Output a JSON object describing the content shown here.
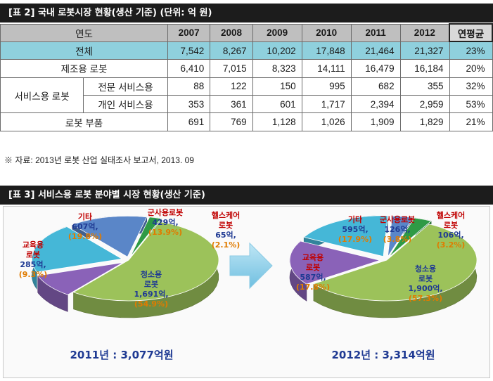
{
  "table2": {
    "title": "[표 2] 국내 로봇시장 현황(생산 기준) (단위: 억 원)",
    "header": {
      "label": "연도",
      "years": [
        "2007",
        "2008",
        "2009",
        "2010",
        "2011",
        "2012"
      ],
      "cagr": "연평균"
    },
    "rows": [
      {
        "label": "전체",
        "values": [
          "7,542",
          "8,267",
          "10,202",
          "17,848",
          "21,464",
          "21,327"
        ],
        "cagr": "23%"
      },
      {
        "label": "제조용 로봇",
        "values": [
          "6,410",
          "7,015",
          "8,323",
          "14,111",
          "16,479",
          "16,184"
        ],
        "cagr": "20%"
      },
      {
        "group": "서비스용 로봇",
        "label": "전문 서비스용",
        "values": [
          "88",
          "122",
          "150",
          "995",
          "682",
          "355"
        ],
        "cagr": "32%"
      },
      {
        "label": "개인 서비스용",
        "values": [
          "353",
          "361",
          "601",
          "1,717",
          "2,394",
          "2,959"
        ],
        "cagr": "53%"
      },
      {
        "label": "로봇 부품",
        "values": [
          "691",
          "769",
          "1,128",
          "1,026",
          "1,909",
          "1,829"
        ],
        "cagr": "21%"
      }
    ],
    "note": "※ 자료: 2013년 로봇 산업 실태조사 보고서, 2013. 09"
  },
  "table3": {
    "title": "[표 3] 서비스용 로봇 분야별 시장 현황(생산 기준)"
  },
  "chart_data": [
    {
      "type": "pie",
      "title": "2011년 : 3,077억원",
      "slices": [
        {
          "name": "청소용 로봇",
          "value": 1691,
          "value_label": "1,691억,",
          "percent": "(54.9%)",
          "color": "#9cc25a"
        },
        {
          "name": "교육용 로봇",
          "value": 285,
          "value_label": "285억,",
          "percent": "(9.3%)",
          "color": "#8a62b8"
        },
        {
          "name": "기타",
          "value": 607,
          "value_label": "607억,",
          "percent": "(19.8%)",
          "color": "#45b7d7"
        },
        {
          "name": "군사용로봇",
          "value": 429,
          "value_label": "429억,",
          "percent": "(13.9%)",
          "color": "#5a86c8"
        },
        {
          "name": "헬스케어 로봇",
          "value": 65,
          "value_label": "65억,",
          "percent": "(2.1%)",
          "color": "#2f9a45"
        }
      ]
    },
    {
      "type": "pie",
      "title": "2012년 : 3,314억원",
      "slices": [
        {
          "name": "청소용 로봇",
          "value": 1900,
          "value_label": "1,900억,",
          "percent": "(57.3%)",
          "color": "#9cc25a"
        },
        {
          "name": "교육용 로봇",
          "value": 587,
          "value_label": "587억,",
          "percent": "(17.8%)",
          "color": "#8a62b8"
        },
        {
          "name": "기타",
          "value": 595,
          "value_label": "595억,",
          "percent": "(17.9%)",
          "color": "#45b7d7"
        },
        {
          "name": "군사용로봇",
          "value": 126,
          "value_label": "126억,",
          "percent": "(3.8%)",
          "color": "#5a86c8"
        },
        {
          "name": "헬스케어 로봇",
          "value": 106,
          "value_label": "106억,",
          "percent": "(3.2%)",
          "color": "#2f9a45"
        }
      ]
    }
  ],
  "label_colors": {
    "name": "#c00000",
    "name_alt": "#1f3a93",
    "value": "#1f3a93",
    "percent": "#e07b00",
    "caption": "#1f3a93"
  }
}
